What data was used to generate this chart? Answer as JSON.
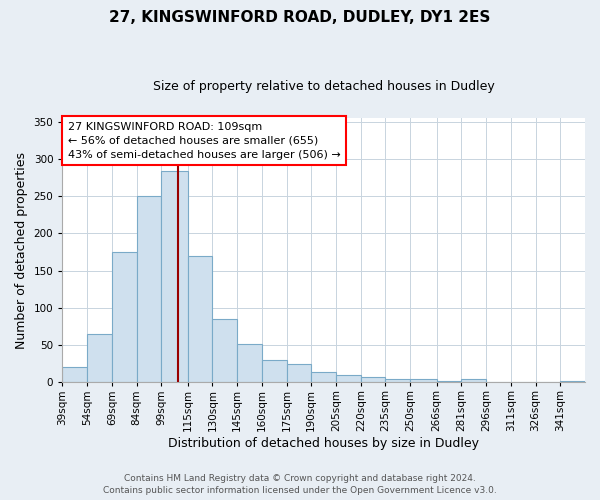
{
  "title": "27, KINGSWINFORD ROAD, DUDLEY, DY1 2ES",
  "subtitle": "Size of property relative to detached houses in Dudley",
  "xlabel": "Distribution of detached houses by size in Dudley",
  "ylabel": "Number of detached properties",
  "footer_line1": "Contains HM Land Registry data © Crown copyright and database right 2024.",
  "footer_line2": "Contains public sector information licensed under the Open Government Licence v3.0.",
  "annotation_line1": "27 KINGSWINFORD ROAD: 109sqm",
  "annotation_line2": "← 56% of detached houses are smaller (655)",
  "annotation_line3": "43% of semi-detached houses are larger (506) →",
  "bar_color": "#cfe0ee",
  "bar_edge_color": "#7aaac8",
  "vline_color": "#990000",
  "vline_x": 109,
  "fig_bg_color": "#e8eef4",
  "plot_bg_color": "#ffffff",
  "grid_color": "#c8d4de",
  "categories": [
    "39sqm",
    "54sqm",
    "69sqm",
    "84sqm",
    "99sqm",
    "115sqm",
    "130sqm",
    "145sqm",
    "160sqm",
    "175sqm",
    "190sqm",
    "205sqm",
    "220sqm",
    "235sqm",
    "250sqm",
    "266sqm",
    "281sqm",
    "296sqm",
    "311sqm",
    "326sqm",
    "341sqm"
  ],
  "bin_left_edges": [
    39,
    54,
    69,
    84,
    99,
    115,
    130,
    145,
    160,
    175,
    190,
    205,
    220,
    235,
    250,
    266,
    281,
    296,
    311,
    326,
    341
  ],
  "bin_widths": [
    15,
    15,
    15,
    15,
    16,
    15,
    15,
    15,
    15,
    15,
    15,
    15,
    15,
    15,
    16,
    15,
    15,
    15,
    15,
    15,
    15
  ],
  "values": [
    20,
    65,
    175,
    250,
    283,
    170,
    85,
    52,
    30,
    25,
    14,
    10,
    7,
    4,
    4,
    2,
    4,
    0,
    0,
    0,
    2
  ],
  "ylim": [
    0,
    355
  ],
  "yticks": [
    0,
    50,
    100,
    150,
    200,
    250,
    300,
    350
  ],
  "title_fontsize": 11,
  "subtitle_fontsize": 9,
  "xlabel_fontsize": 9,
  "ylabel_fontsize": 9,
  "tick_fontsize": 7.5,
  "annotation_fontsize": 8,
  "footer_fontsize": 6.5
}
